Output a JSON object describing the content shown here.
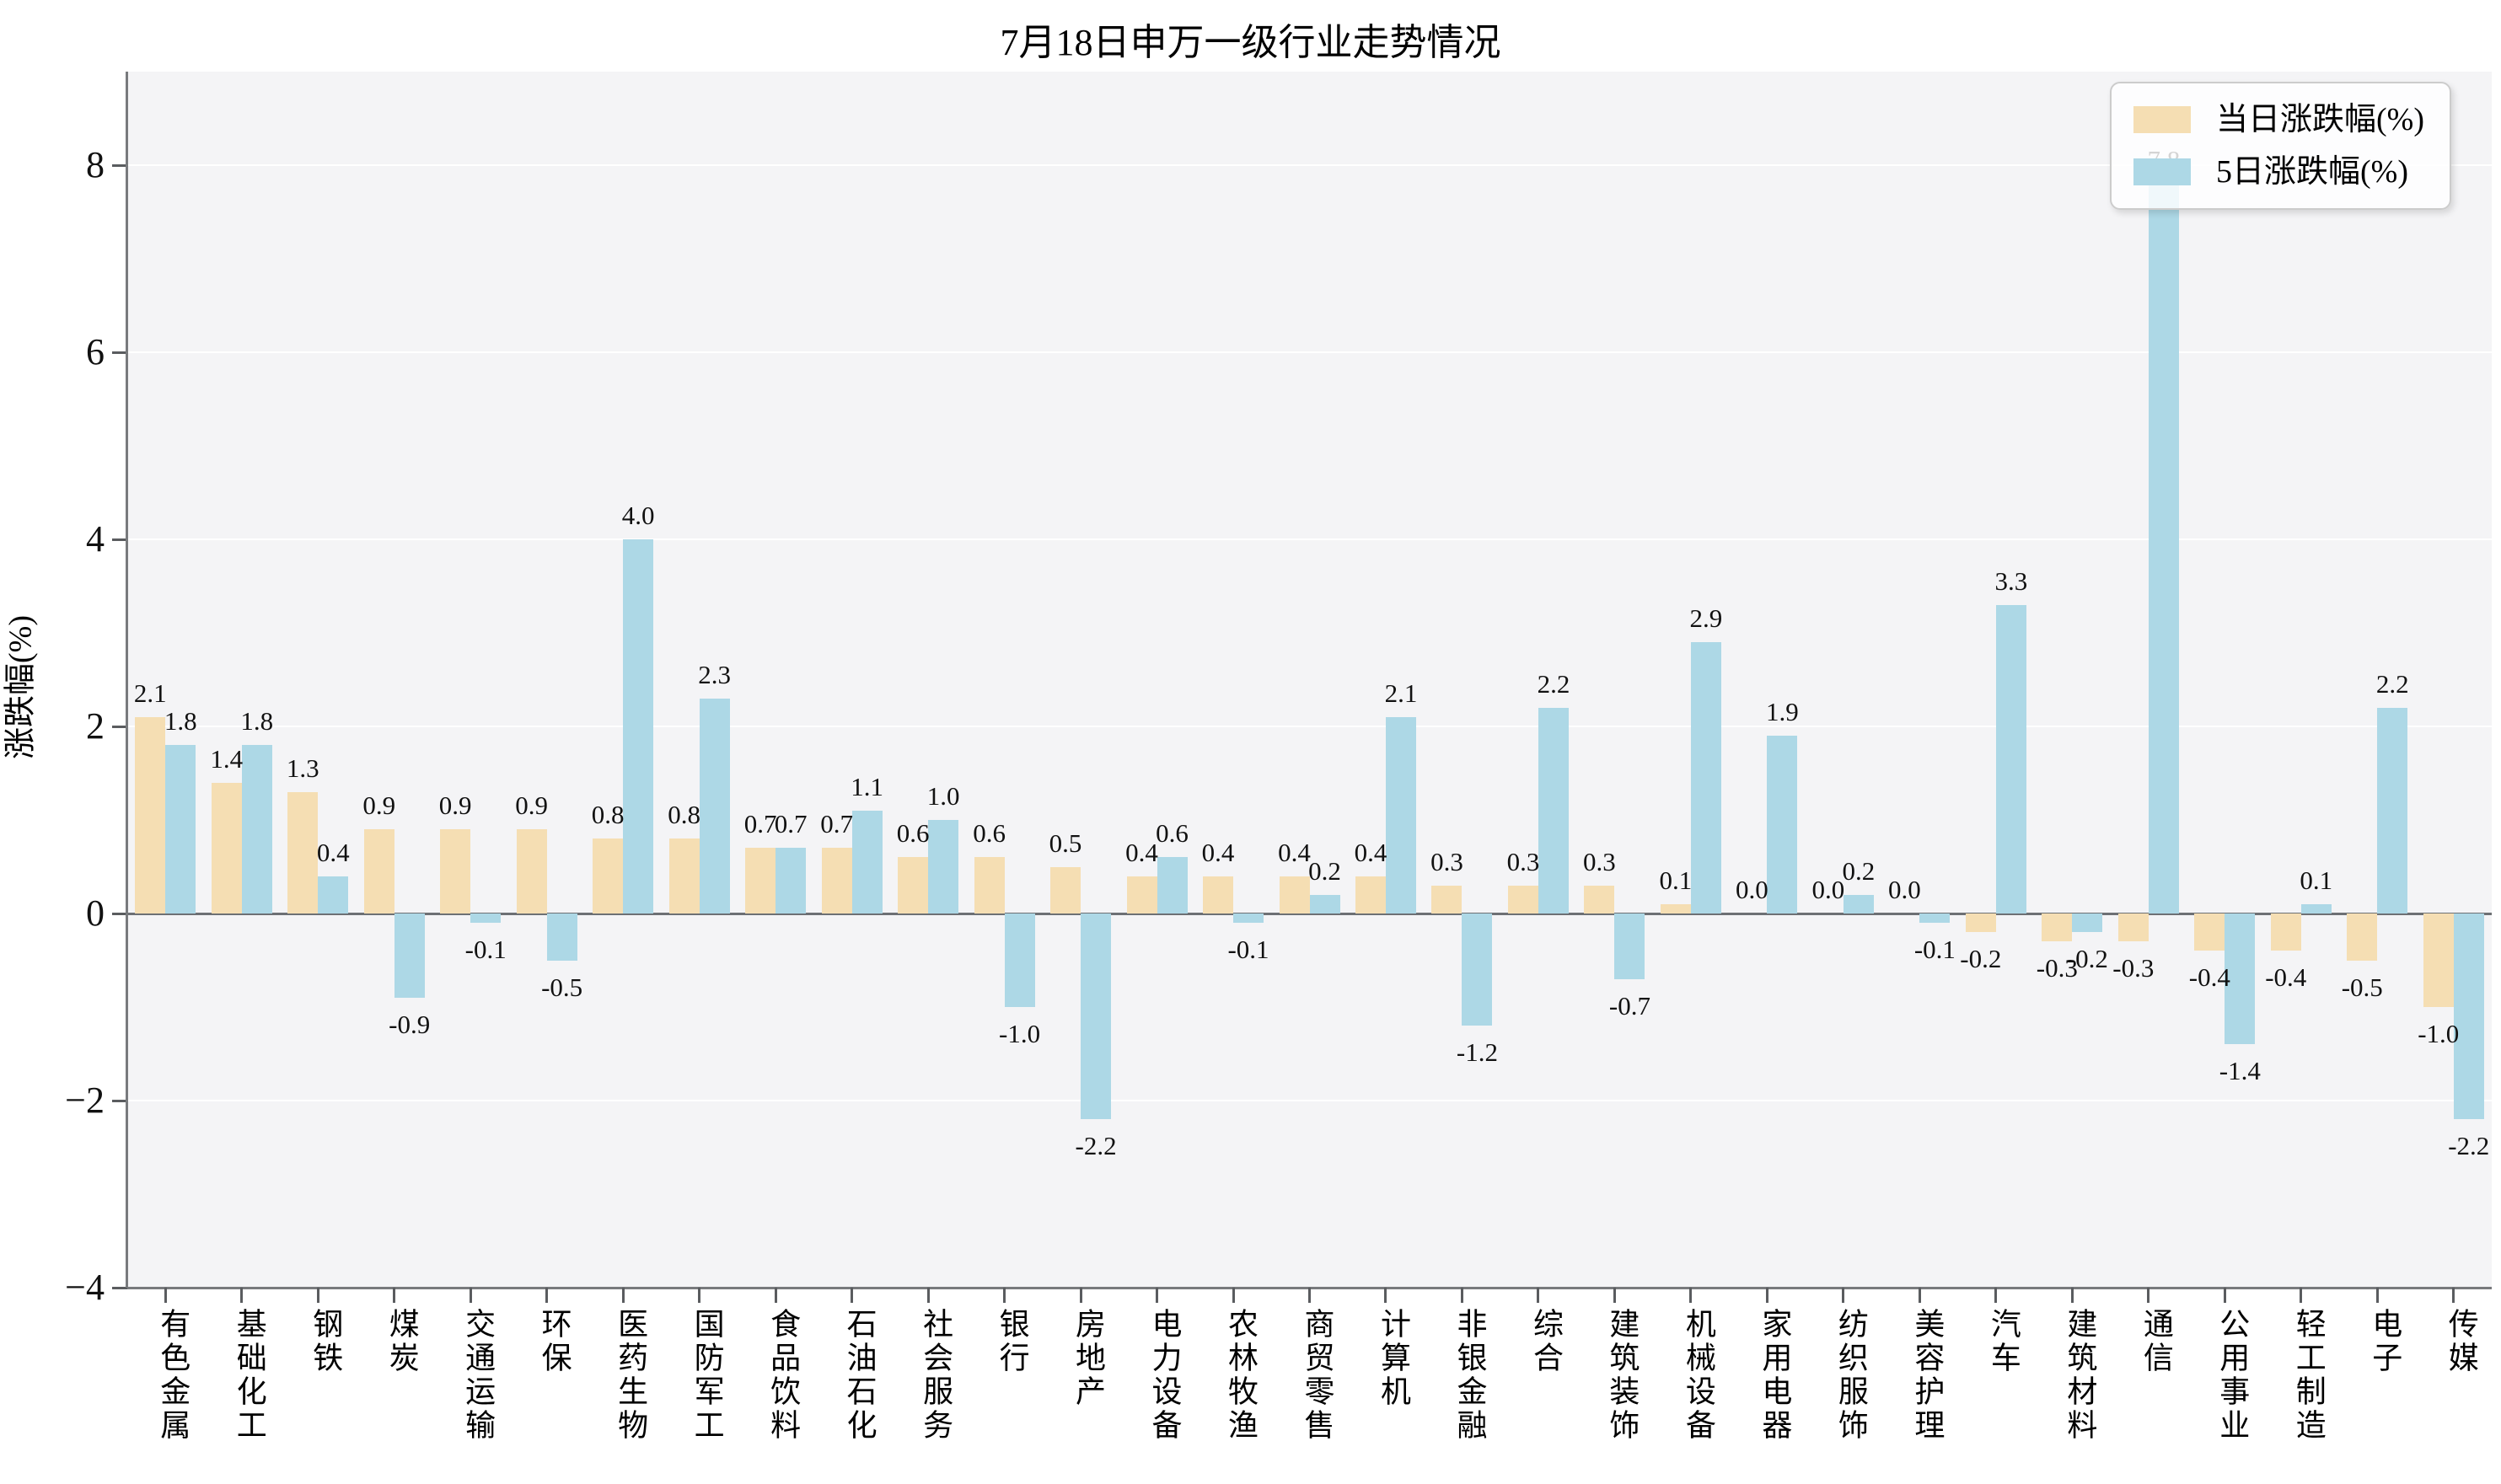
{
  "title": "7月18日申万一级行业走势情况",
  "y_axis": {
    "label": "涨跌幅(%)",
    "ticks": [
      8,
      6,
      4,
      2,
      0,
      -2,
      -4
    ],
    "min": -4,
    "max": 9
  },
  "legend": {
    "items": [
      {
        "label": "当日涨跌幅(%)",
        "color": "#F5DEB3"
      },
      {
        "label": "5日涨跌幅(%)",
        "color": "#ADD8E6"
      }
    ],
    "position": "upper-right"
  },
  "colors": {
    "daily_bar": "#F5DEB3",
    "five_day_bar": "#ADD8E6",
    "plot_background": "#f4f4f6",
    "grid": "#ffffff",
    "axis": "#787a7d"
  },
  "chart_data": {
    "type": "bar",
    "title": "7月18日申万一级行业走势情况",
    "xlabel": "",
    "ylabel": "涨跌幅(%)",
    "ylim": [
      -4,
      9
    ],
    "grid": true,
    "legend_position": "upper-right",
    "categories": [
      "有色金属",
      "基础化工",
      "钢铁",
      "煤炭",
      "交通运输",
      "环保",
      "医药生物",
      "国防军工",
      "食品饮料",
      "石油石化",
      "社会服务",
      "银行",
      "房地产",
      "电力设备",
      "农林牧渔",
      "商贸零售",
      "计算机",
      "非银金融",
      "综合",
      "建筑装饰",
      "机械设备",
      "家用电器",
      "纺织服饰",
      "美容护理",
      "汽车",
      "建筑材料",
      "通信",
      "公用事业",
      "轻工制造",
      "电子",
      "传媒"
    ],
    "series": [
      {
        "name": "当日涨跌幅(%)",
        "color": "#F5DEB3",
        "values": [
          2.1,
          1.4,
          1.3,
          0.9,
          0.9,
          0.9,
          0.8,
          0.8,
          0.7,
          0.7,
          0.6,
          0.6,
          0.5,
          0.4,
          0.4,
          0.4,
          0.4,
          0.3,
          0.3,
          0.3,
          0.1,
          0.0,
          0.0,
          0.0,
          -0.2,
          -0.3,
          -0.3,
          -0.4,
          -0.4,
          -0.5,
          -1.0
        ]
      },
      {
        "name": "5日涨跌幅(%)",
        "color": "#ADD8E6",
        "values": [
          1.8,
          1.8,
          0.4,
          -0.9,
          -0.1,
          -0.5,
          4.0,
          2.3,
          0.7,
          1.1,
          1.0,
          -1.0,
          -2.2,
          0.6,
          -0.1,
          0.2,
          2.1,
          -1.2,
          2.2,
          -0.7,
          2.9,
          1.9,
          0.2,
          -0.1,
          3.3,
          -0.2,
          7.8,
          -1.4,
          0.1,
          2.2,
          -2.2
        ]
      }
    ]
  }
}
